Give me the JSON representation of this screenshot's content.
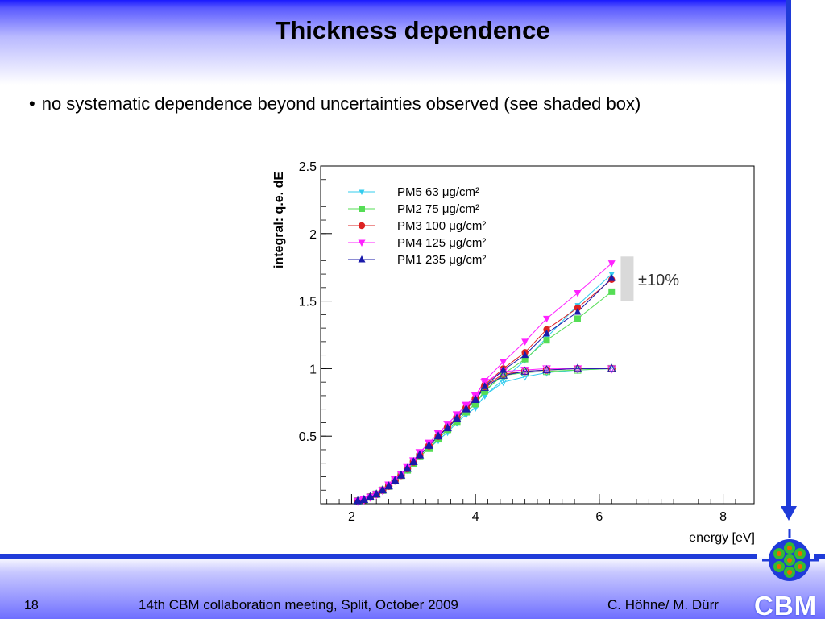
{
  "slide": {
    "title": "Thickness dependence",
    "bullet": "no systematic dependence beyond uncertainties observed (see shaded box)",
    "page_number": "18",
    "footer_center": "14th CBM collaboration meeting, Split, October 2009",
    "footer_right": "C. Höhne/ M. Dürr",
    "logo_text": "CBM",
    "colors": {
      "band": "#1f3bd9",
      "shade": "#d9d9d9"
    }
  },
  "chart_data": {
    "type": "line",
    "xlabel": "energy [eV]",
    "ylabel": "integral: q.e. dE",
    "xlim": [
      1.5,
      8.5
    ],
    "ylim": [
      0.0,
      2.5
    ],
    "xticks": [
      "2",
      "4",
      "6",
      "8"
    ],
    "yticks": [
      "0.5",
      "1",
      "1.5",
      "2",
      "2.5"
    ],
    "annotation": "±10%",
    "shaded_box": {
      "x": 6.45,
      "y": [
        1.5,
        1.83
      ]
    },
    "series": [
      {
        "name": "PM5   63 μg/cm²",
        "marker": "tri-down-small",
        "color": "#33ccee",
        "x": [
          2.1,
          2.2,
          2.3,
          2.4,
          2.5,
          2.6,
          2.7,
          2.8,
          2.9,
          3.0,
          3.1,
          3.25,
          3.4,
          3.55,
          3.7,
          3.85,
          4.0,
          4.15,
          4.45,
          4.8,
          5.15,
          5.65,
          6.2
        ],
        "y": [
          0.02,
          0.03,
          0.05,
          0.07,
          0.1,
          0.13,
          0.17,
          0.21,
          0.25,
          0.3,
          0.35,
          0.41,
          0.47,
          0.53,
          0.6,
          0.66,
          0.71,
          0.8,
          0.92,
          1.06,
          1.23,
          1.47,
          1.7
        ],
        "y_normalized": [
          0.02,
          0.03,
          0.05,
          0.07,
          0.1,
          0.13,
          0.17,
          0.21,
          0.25,
          0.3,
          0.35,
          0.41,
          0.47,
          0.53,
          0.6,
          0.66,
          0.71,
          0.8,
          0.9,
          0.94,
          0.97,
          0.99,
          1.0
        ]
      },
      {
        "name": "PM2   75 μg/cm²",
        "marker": "square",
        "color": "#55dd55",
        "x": [
          2.1,
          2.2,
          2.3,
          2.4,
          2.5,
          2.6,
          2.7,
          2.8,
          2.9,
          3.0,
          3.1,
          3.25,
          3.4,
          3.55,
          3.7,
          3.85,
          4.0,
          4.15,
          4.45,
          4.8,
          5.15,
          5.65,
          6.2
        ],
        "y": [
          0.02,
          0.03,
          0.05,
          0.07,
          0.1,
          0.13,
          0.17,
          0.21,
          0.25,
          0.3,
          0.35,
          0.41,
          0.48,
          0.55,
          0.61,
          0.68,
          0.74,
          0.83,
          0.96,
          1.07,
          1.21,
          1.37,
          1.57
        ],
        "y_normalized": [
          0.02,
          0.03,
          0.05,
          0.07,
          0.1,
          0.13,
          0.17,
          0.21,
          0.25,
          0.3,
          0.35,
          0.41,
          0.48,
          0.55,
          0.61,
          0.68,
          0.74,
          0.84,
          0.95,
          0.97,
          0.98,
          0.99,
          1.0
        ]
      },
      {
        "name": "PM3 100 μg/cm²",
        "marker": "circle",
        "color": "#dd2222",
        "x": [
          2.1,
          2.2,
          2.3,
          2.4,
          2.5,
          2.6,
          2.7,
          2.8,
          2.9,
          3.0,
          3.1,
          3.25,
          3.4,
          3.55,
          3.7,
          3.85,
          4.0,
          4.15,
          4.45,
          4.8,
          5.15,
          5.65,
          6.2
        ],
        "y": [
          0.02,
          0.03,
          0.05,
          0.07,
          0.1,
          0.13,
          0.17,
          0.21,
          0.26,
          0.31,
          0.36,
          0.43,
          0.5,
          0.57,
          0.64,
          0.71,
          0.78,
          0.88,
          1.0,
          1.12,
          1.29,
          1.45,
          1.66
        ],
        "y_normalized": [
          0.02,
          0.03,
          0.05,
          0.07,
          0.1,
          0.13,
          0.17,
          0.21,
          0.26,
          0.31,
          0.36,
          0.43,
          0.5,
          0.57,
          0.64,
          0.71,
          0.78,
          0.87,
          0.96,
          0.98,
          0.99,
          1.0,
          1.0
        ]
      },
      {
        "name": "PM4 125 μg/cm²",
        "marker": "tri-down",
        "color": "#ff22ff",
        "x": [
          2.1,
          2.2,
          2.3,
          2.4,
          2.5,
          2.6,
          2.7,
          2.8,
          2.9,
          3.0,
          3.1,
          3.25,
          3.4,
          3.55,
          3.7,
          3.85,
          4.0,
          4.15,
          4.45,
          4.8,
          5.15,
          5.65,
          6.2
        ],
        "y": [
          0.02,
          0.03,
          0.05,
          0.07,
          0.1,
          0.14,
          0.18,
          0.22,
          0.27,
          0.32,
          0.38,
          0.45,
          0.52,
          0.59,
          0.66,
          0.73,
          0.8,
          0.91,
          1.05,
          1.2,
          1.37,
          1.56,
          1.78
        ],
        "y_normalized": [
          0.02,
          0.03,
          0.05,
          0.07,
          0.1,
          0.14,
          0.18,
          0.22,
          0.27,
          0.32,
          0.38,
          0.45,
          0.52,
          0.59,
          0.66,
          0.73,
          0.8,
          0.9,
          0.98,
          0.99,
          1.0,
          1.0,
          1.0
        ]
      },
      {
        "name": "PM1 235 μg/cm²",
        "marker": "tri-up",
        "color": "#1a1aaa",
        "x": [
          2.1,
          2.2,
          2.3,
          2.4,
          2.5,
          2.6,
          2.7,
          2.8,
          2.9,
          3.0,
          3.1,
          3.25,
          3.4,
          3.55,
          3.7,
          3.85,
          4.0,
          4.15,
          4.45,
          4.8,
          5.15,
          5.65,
          6.2
        ],
        "y": [
          0.02,
          0.03,
          0.05,
          0.07,
          0.1,
          0.13,
          0.17,
          0.21,
          0.26,
          0.31,
          0.36,
          0.43,
          0.5,
          0.56,
          0.63,
          0.7,
          0.77,
          0.87,
          0.99,
          1.1,
          1.26,
          1.42,
          1.67
        ],
        "y_normalized": [
          0.02,
          0.03,
          0.05,
          0.07,
          0.1,
          0.13,
          0.17,
          0.21,
          0.26,
          0.31,
          0.36,
          0.43,
          0.5,
          0.56,
          0.63,
          0.7,
          0.77,
          0.86,
          0.95,
          0.98,
          0.99,
          1.0,
          1.0
        ]
      }
    ]
  }
}
